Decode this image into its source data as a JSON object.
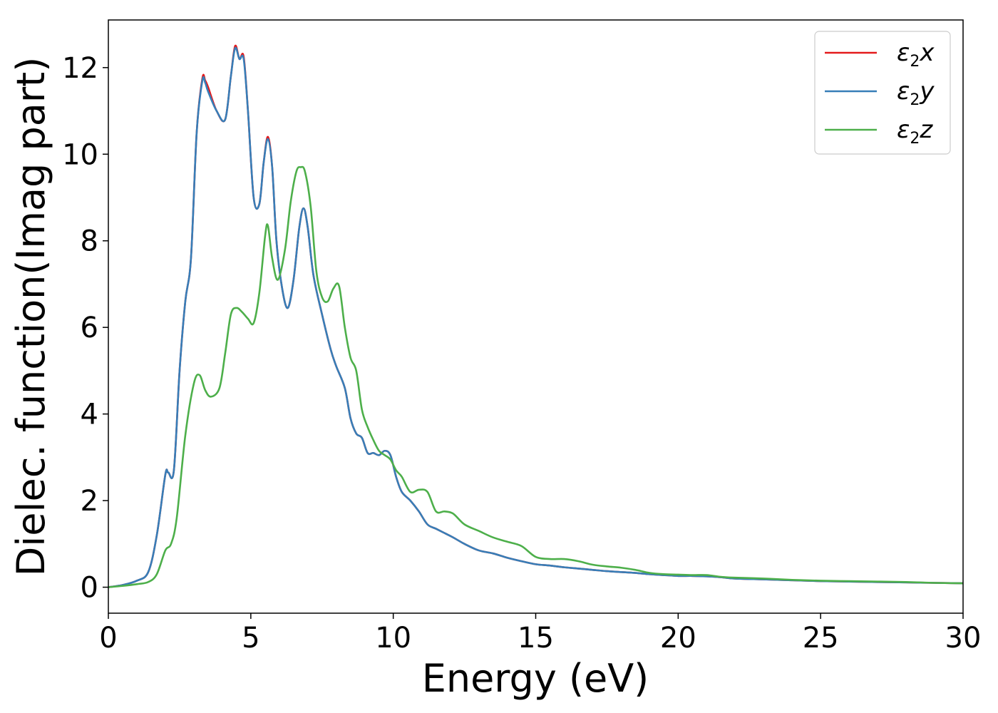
{
  "chart_data": {
    "type": "line",
    "xlabel": "Energy (eV)",
    "ylabel": "Dielec. function(Imag part)",
    "xlim": [
      0,
      30
    ],
    "ylim": [
      -0.6,
      13.1
    ],
    "xticks": [
      0,
      5,
      10,
      15,
      20,
      25,
      30
    ],
    "yticks": [
      0,
      2,
      4,
      6,
      8,
      10,
      12
    ],
    "grid": false,
    "legend_position": "top-right",
    "series": [
      {
        "name": "ε2x",
        "legend": {
          "base": "ε",
          "sub": "2",
          "axis": "x"
        },
        "color": "#e41a1c",
        "x": [
          0,
          0.5,
          1.0,
          1.4,
          1.7,
          2.0,
          2.1,
          2.3,
          2.5,
          2.7,
          2.9,
          3.1,
          3.3,
          3.4,
          3.5,
          3.8,
          4.1,
          4.3,
          4.45,
          4.6,
          4.75,
          4.9,
          5.1,
          5.3,
          5.45,
          5.6,
          5.75,
          5.9,
          6.1,
          6.3,
          6.5,
          6.7,
          6.85,
          7.0,
          7.2,
          7.5,
          7.8,
          8.0,
          8.3,
          8.5,
          8.7,
          8.9,
          9.1,
          9.3,
          9.5,
          9.7,
          9.9,
          10.1,
          10.3,
          10.6,
          10.9,
          11.2,
          11.5,
          11.8,
          12.1,
          12.5,
          13.0,
          13.5,
          14.0,
          14.5,
          15.0,
          15.5,
          16.0,
          16.5,
          17.0,
          17.5,
          18.0,
          18.5,
          19.0,
          19.5,
          20.0,
          20.5,
          21.0,
          21.5,
          22.0,
          23.0,
          24.0,
          25.0,
          26.0,
          27.0,
          28.0,
          29.0,
          30.0
        ],
        "values": [
          0.0,
          0.05,
          0.15,
          0.35,
          1.2,
          2.6,
          2.65,
          2.7,
          5.0,
          6.6,
          7.6,
          10.5,
          11.75,
          11.7,
          11.55,
          11.0,
          10.8,
          11.8,
          12.5,
          12.2,
          12.25,
          11.0,
          9.0,
          8.85,
          9.8,
          10.4,
          9.7,
          8.0,
          6.9,
          6.45,
          7.1,
          8.3,
          8.75,
          8.3,
          7.2,
          6.3,
          5.5,
          5.1,
          4.6,
          3.9,
          3.55,
          3.45,
          3.1,
          3.1,
          3.05,
          3.15,
          3.05,
          2.55,
          2.2,
          2.0,
          1.75,
          1.45,
          1.35,
          1.25,
          1.15,
          1.0,
          0.85,
          0.78,
          0.68,
          0.6,
          0.53,
          0.5,
          0.46,
          0.43,
          0.4,
          0.37,
          0.35,
          0.33,
          0.3,
          0.28,
          0.26,
          0.26,
          0.25,
          0.23,
          0.2,
          0.18,
          0.16,
          0.14,
          0.13,
          0.12,
          0.11,
          0.1,
          0.09
        ]
      },
      {
        "name": "ε2y",
        "legend": {
          "base": "ε",
          "sub": "2",
          "axis": "y"
        },
        "color": "#377eb8",
        "x": [
          0,
          0.5,
          1.0,
          1.4,
          1.7,
          2.0,
          2.1,
          2.3,
          2.5,
          2.7,
          2.9,
          3.1,
          3.3,
          3.4,
          3.5,
          3.8,
          4.1,
          4.3,
          4.45,
          4.6,
          4.75,
          4.9,
          5.1,
          5.3,
          5.45,
          5.6,
          5.75,
          5.9,
          6.1,
          6.3,
          6.5,
          6.7,
          6.85,
          7.0,
          7.2,
          7.5,
          7.8,
          8.0,
          8.3,
          8.5,
          8.7,
          8.9,
          9.1,
          9.3,
          9.5,
          9.7,
          9.9,
          10.1,
          10.3,
          10.6,
          10.9,
          11.2,
          11.5,
          11.8,
          12.1,
          12.5,
          13.0,
          13.5,
          14.0,
          14.5,
          15.0,
          15.5,
          16.0,
          16.5,
          17.0,
          17.5,
          18.0,
          18.5,
          19.0,
          19.5,
          20.0,
          20.5,
          21.0,
          21.5,
          22.0,
          23.0,
          24.0,
          25.0,
          26.0,
          27.0,
          28.0,
          29.0,
          30.0
        ],
        "values": [
          0.0,
          0.05,
          0.15,
          0.35,
          1.2,
          2.6,
          2.65,
          2.7,
          5.0,
          6.6,
          7.6,
          10.5,
          11.7,
          11.65,
          11.45,
          11.0,
          10.8,
          11.8,
          12.45,
          12.2,
          12.2,
          11.0,
          9.0,
          8.85,
          9.8,
          10.35,
          9.7,
          8.0,
          6.9,
          6.45,
          7.1,
          8.3,
          8.75,
          8.3,
          7.2,
          6.3,
          5.5,
          5.1,
          4.6,
          3.9,
          3.55,
          3.45,
          3.1,
          3.1,
          3.05,
          3.15,
          3.05,
          2.55,
          2.2,
          2.0,
          1.75,
          1.45,
          1.35,
          1.25,
          1.15,
          1.0,
          0.85,
          0.78,
          0.68,
          0.6,
          0.53,
          0.5,
          0.46,
          0.43,
          0.4,
          0.37,
          0.35,
          0.33,
          0.3,
          0.28,
          0.26,
          0.26,
          0.25,
          0.23,
          0.2,
          0.18,
          0.16,
          0.14,
          0.13,
          0.12,
          0.11,
          0.1,
          0.09
        ]
      },
      {
        "name": "ε2z",
        "legend": {
          "base": "ε",
          "sub": "2",
          "axis": "z"
        },
        "color": "#4daf4a",
        "x": [
          0,
          0.5,
          1.0,
          1.4,
          1.7,
          2.0,
          2.2,
          2.4,
          2.7,
          3.0,
          3.2,
          3.4,
          3.6,
          3.9,
          4.1,
          4.3,
          4.5,
          4.7,
          4.9,
          5.1,
          5.3,
          5.5,
          5.6,
          5.75,
          5.95,
          6.2,
          6.4,
          6.6,
          6.75,
          6.9,
          7.1,
          7.3,
          7.5,
          7.7,
          7.9,
          8.1,
          8.3,
          8.5,
          8.7,
          8.9,
          9.1,
          9.3,
          9.5,
          9.7,
          9.9,
          10.1,
          10.3,
          10.6,
          10.9,
          11.2,
          11.5,
          11.8,
          12.1,
          12.5,
          13.0,
          13.5,
          14.0,
          14.5,
          15.0,
          15.5,
          16.0,
          16.5,
          17.0,
          17.5,
          18.0,
          18.5,
          19.0,
          19.5,
          20.0,
          20.5,
          21.0,
          21.5,
          22.0,
          23.0,
          24.0,
          25.0,
          26.0,
          27.0,
          28.0,
          29.0,
          30.0
        ],
        "values": [
          0.0,
          0.03,
          0.07,
          0.12,
          0.3,
          0.85,
          1.0,
          1.6,
          3.5,
          4.7,
          4.9,
          4.55,
          4.4,
          4.6,
          5.4,
          6.3,
          6.45,
          6.35,
          6.2,
          6.1,
          6.8,
          8.1,
          8.35,
          7.6,
          7.1,
          7.8,
          8.9,
          9.6,
          9.7,
          9.6,
          8.8,
          7.3,
          6.7,
          6.6,
          6.9,
          6.95,
          6.0,
          5.3,
          5.0,
          4.1,
          3.7,
          3.4,
          3.15,
          3.05,
          2.95,
          2.7,
          2.55,
          2.2,
          2.25,
          2.2,
          1.75,
          1.75,
          1.7,
          1.45,
          1.3,
          1.15,
          1.05,
          0.95,
          0.7,
          0.65,
          0.65,
          0.6,
          0.52,
          0.48,
          0.45,
          0.4,
          0.33,
          0.3,
          0.29,
          0.28,
          0.28,
          0.24,
          0.22,
          0.2,
          0.17,
          0.15,
          0.14,
          0.13,
          0.12,
          0.1,
          0.09
        ]
      }
    ]
  }
}
